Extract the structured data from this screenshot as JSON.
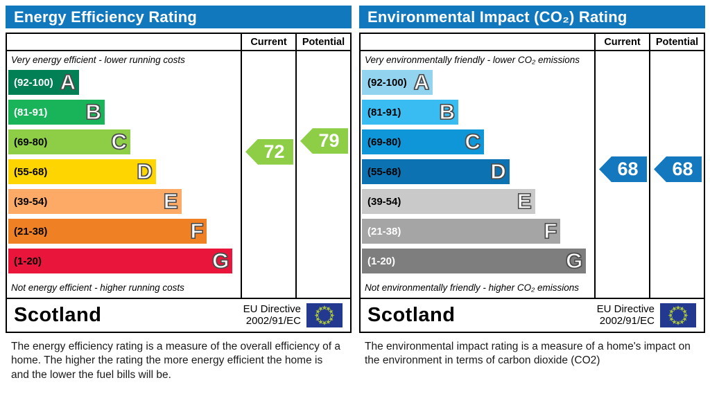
{
  "accent_colors": {
    "header_blue": "#1278be",
    "border_black": "#000000"
  },
  "panels": [
    {
      "title": "Energy Efficiency Rating",
      "columns": {
        "current": "Current",
        "potential": "Potential"
      },
      "top_caption": "Very energy efficient - lower running costs",
      "bottom_caption": "Not energy efficient - higher running costs",
      "bands": [
        {
          "letter": "A",
          "range_label": "(92-100)",
          "min": 92,
          "max": 100,
          "color": "#008054",
          "label_color": "#ffffff"
        },
        {
          "letter": "B",
          "range_label": "(81-91)",
          "min": 81,
          "max": 91,
          "color": "#19b459",
          "label_color": "#ffffff"
        },
        {
          "letter": "C",
          "range_label": "(69-80)",
          "min": 69,
          "max": 80,
          "color": "#8dce46",
          "label_color": "#000000"
        },
        {
          "letter": "D",
          "range_label": "(55-68)",
          "min": 55,
          "max": 68,
          "color": "#ffd500",
          "label_color": "#000000"
        },
        {
          "letter": "E",
          "range_label": "(39-54)",
          "min": 39,
          "max": 54,
          "color": "#fcaa65",
          "label_color": "#000000"
        },
        {
          "letter": "F",
          "range_label": "(21-38)",
          "min": 21,
          "max": 38,
          "color": "#ef8023",
          "label_color": "#000000"
        },
        {
          "letter": "G",
          "range_label": "(1-20)",
          "min": 1,
          "max": 20,
          "color": "#e9153b",
          "label_color": "#000000"
        }
      ],
      "ratings": {
        "current": {
          "value": 72,
          "color": "#8dce46"
        },
        "potential": {
          "value": 79,
          "color": "#8dce46"
        }
      },
      "footer": {
        "region": "Scotland",
        "directive_line1": "EU Directive",
        "directive_line2": "2002/91/EC",
        "flag_icon": "eu-flag"
      },
      "description": "The energy efficiency rating is a measure of the overall efficiency of a home.  The higher the rating the more energy efficient the home is and the lower the fuel bills will be."
    },
    {
      "title": "Environmental Impact (CO₂) Rating",
      "columns": {
        "current": "Current",
        "potential": "Potential"
      },
      "top_caption": "Very environmentally friendly - lower CO₂ emissions",
      "bottom_caption": "Not environmentally friendly - higher CO₂ emissions",
      "bands": [
        {
          "letter": "A",
          "range_label": "(92-100)",
          "min": 92,
          "max": 100,
          "color": "#92d4f0",
          "label_color": "#000000"
        },
        {
          "letter": "B",
          "range_label": "(81-91)",
          "min": 81,
          "max": 91,
          "color": "#38bcf1",
          "label_color": "#000000"
        },
        {
          "letter": "C",
          "range_label": "(69-80)",
          "min": 69,
          "max": 80,
          "color": "#0e96d8",
          "label_color": "#000000"
        },
        {
          "letter": "D",
          "range_label": "(55-68)",
          "min": 55,
          "max": 68,
          "color": "#0c72b2",
          "label_color": "#000000"
        },
        {
          "letter": "E",
          "range_label": "(39-54)",
          "min": 39,
          "max": 54,
          "color": "#c9c9c9",
          "label_color": "#000000"
        },
        {
          "letter": "F",
          "range_label": "(21-38)",
          "min": 21,
          "max": 38,
          "color": "#a5a5a5",
          "label_color": "#ffffff"
        },
        {
          "letter": "G",
          "range_label": "(1-20)",
          "min": 1,
          "max": 20,
          "color": "#7e7e7e",
          "label_color": "#ffffff"
        }
      ],
      "ratings": {
        "current": {
          "value": 68,
          "color": "#1478bf"
        },
        "potential": {
          "value": 68,
          "color": "#1478bf"
        }
      },
      "footer": {
        "region": "Scotland",
        "directive_line1": "EU Directive",
        "directive_line2": "2002/91/EC",
        "flag_icon": "eu-flag"
      },
      "description": "The environmental impact rating is a measure of a home's impact on the environment in terms of carbon dioxide (CO2)"
    }
  ],
  "chart_data": [
    {
      "type": "bar",
      "title": "Energy Efficiency Rating",
      "categories": [
        "A (92-100)",
        "B (81-91)",
        "C (69-80)",
        "D (55-68)",
        "E (39-54)",
        "F (21-38)",
        "G (1-20)"
      ],
      "band_colors": [
        "#008054",
        "#19b459",
        "#8dce46",
        "#ffd500",
        "#fcaa65",
        "#ef8023",
        "#e9153b"
      ],
      "bar_lengths_relative": [
        0.31,
        0.42,
        0.53,
        0.64,
        0.75,
        0.86,
        0.97
      ],
      "current": 72,
      "current_band": "C",
      "potential": 79,
      "potential_band": "C",
      "region": "Scotland",
      "directive": "EU Directive 2002/91/EC",
      "top_caption": "Very energy efficient - lower running costs",
      "bottom_caption": "Not energy efficient - higher running costs"
    },
    {
      "type": "bar",
      "title": "Environmental Impact (CO₂) Rating",
      "categories": [
        "A (92-100)",
        "B (81-91)",
        "C (69-80)",
        "D (55-68)",
        "E (39-54)",
        "F (21-38)",
        "G (1-20)"
      ],
      "band_colors": [
        "#92d4f0",
        "#38bcf1",
        "#0e96d8",
        "#0c72b2",
        "#c9c9c9",
        "#a5a5a5",
        "#7e7e7e"
      ],
      "bar_lengths_relative": [
        0.31,
        0.42,
        0.53,
        0.64,
        0.75,
        0.86,
        0.97
      ],
      "current": 68,
      "current_band": "D",
      "potential": 68,
      "potential_band": "D",
      "region": "Scotland",
      "directive": "EU Directive 2002/91/EC",
      "top_caption": "Very environmentally friendly - lower CO₂ emissions",
      "bottom_caption": "Not environmentally friendly - higher CO₂ emissions"
    }
  ]
}
